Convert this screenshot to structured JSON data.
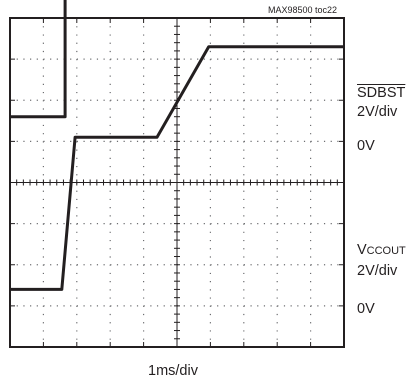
{
  "figure_tag": "MAX98500 toc22",
  "channels": [
    {
      "signal_main": "SDBST",
      "signal_sub": "",
      "overline": true,
      "scale": "2V/div",
      "ground_label": "0V"
    },
    {
      "signal_main": "V",
      "signal_sub": "CCOUT",
      "overline": false,
      "scale": "2V/div",
      "ground_label": "0V"
    }
  ],
  "time_scale": "1ms/div",
  "chart_data": {
    "type": "line",
    "xlabel": "1ms/div",
    "x_unit": "ms",
    "x_range": [
      0,
      10
    ],
    "x_divisions": 10,
    "y_divisions": 8,
    "grid": true,
    "series": [
      {
        "name": "SDBST",
        "scale_v_per_div": 2,
        "ground_div": 5.6,
        "points": [
          [
            0,
            0
          ],
          [
            1.65,
            0
          ],
          [
            1.65,
            3.8
          ],
          [
            10,
            3.8
          ]
        ]
      },
      {
        "name": "VCCOUT",
        "scale_v_per_div": 2,
        "ground_div": 1.4,
        "points": [
          [
            0,
            0
          ],
          [
            1.55,
            0
          ],
          [
            1.95,
            3.7
          ],
          [
            4.4,
            3.7
          ],
          [
            5.95,
            5.9
          ],
          [
            10,
            5.9
          ]
        ]
      }
    ]
  }
}
